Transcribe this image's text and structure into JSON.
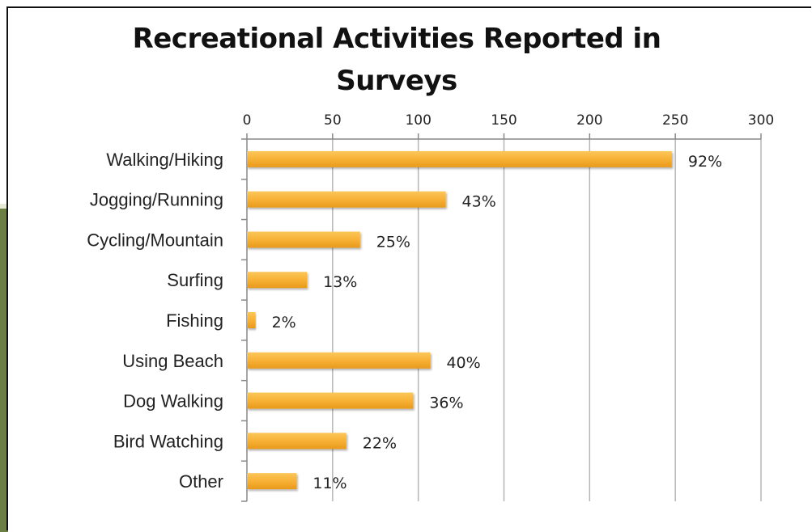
{
  "chart_data": {
    "type": "bar",
    "orientation": "horizontal",
    "title": "Recreational Activities Reported in Surveys",
    "categories": [
      "Walking/Hiking",
      "Jogging/Running",
      "Cycling/Mountain",
      "Surfing",
      "Fishing",
      "Using Beach",
      "Dog Walking",
      "Bird Watching",
      "Other"
    ],
    "values": [
      248,
      116,
      66,
      35,
      5,
      107,
      97,
      58,
      29
    ],
    "data_labels": [
      "92%",
      "43%",
      "25%",
      "13%",
      "2%",
      "40%",
      "36%",
      "22%",
      "11%"
    ],
    "xlim": [
      0,
      300
    ],
    "x_ticks": [
      "0",
      "50",
      "100",
      "150",
      "200",
      "250",
      "300"
    ],
    "x_axis_position": "top",
    "grid": true,
    "legend": "none",
    "bar_color": "#f7b135"
  }
}
